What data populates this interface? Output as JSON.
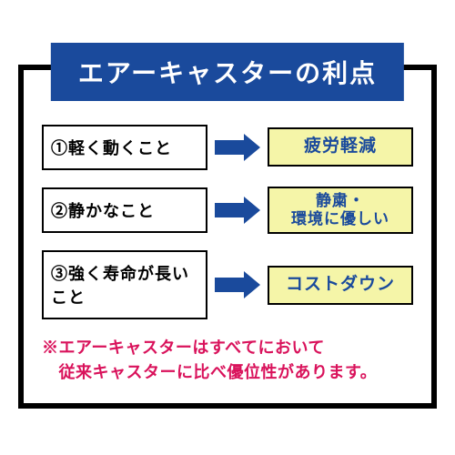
{
  "title": {
    "text": "エアーキャスターの利点",
    "bg_color": "#1a4a9c",
    "text_color": "#ffffff"
  },
  "rows": [
    {
      "feature": "①軽く動くこと",
      "benefit": "疲労軽減",
      "multiline": false
    },
    {
      "feature": "②静かなこと",
      "benefit": "静粛・\n環境に優しい",
      "multiline": true
    },
    {
      "feature": "③強く寿命が長いこと",
      "benefit": "コストダウン",
      "multiline": false
    }
  ],
  "arrow_color": "#1a4a9c",
  "benefit_bg": "#f5f5a8",
  "benefit_text_color": "#1a4a9c",
  "footnote": {
    "line1": "※エアーキャスターはすべてにおいて",
    "line2": "　従来キャスターに比べ優位性があります。",
    "color": "#d9125b"
  },
  "border_color": "#000000"
}
